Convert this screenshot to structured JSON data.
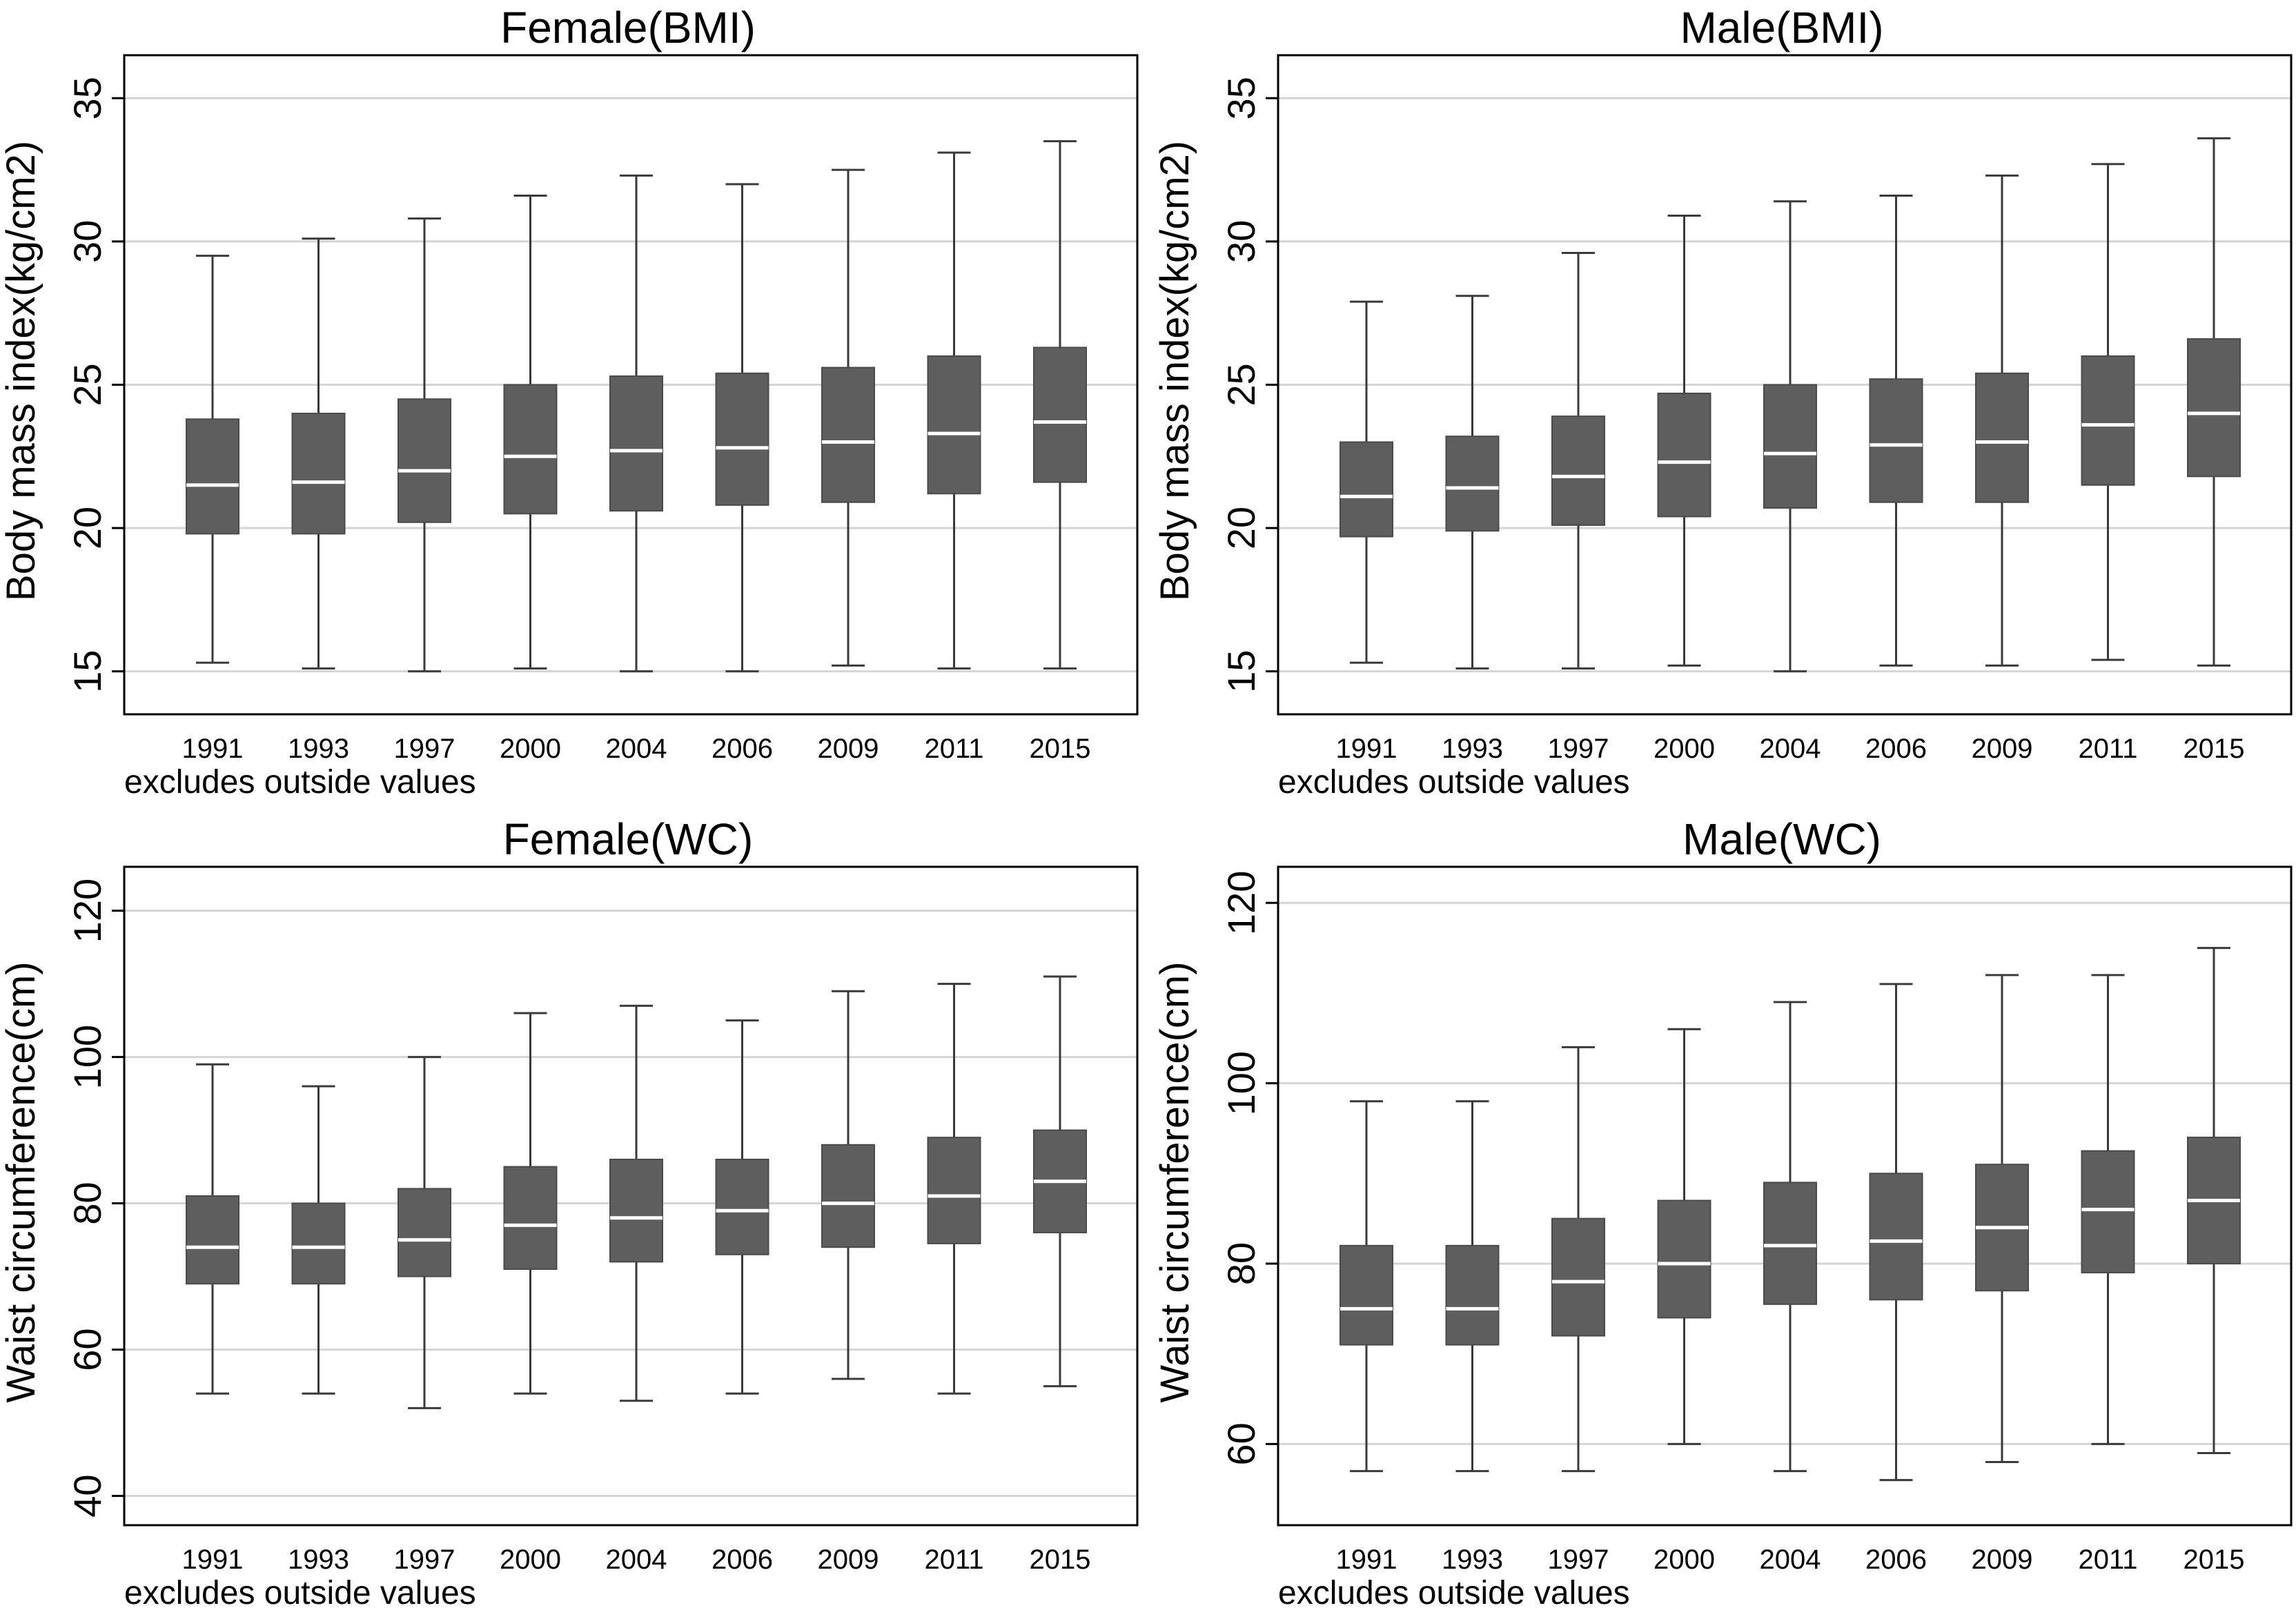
{
  "figure": {
    "note": "excludes outside values"
  },
  "chart_data": [
    {
      "type": "boxplot",
      "title": "Female(BMI)",
      "ylabel": "Body mass index(kg/cm2)",
      "xlabel": "",
      "ylim": [
        13.5,
        36.5
      ],
      "yticks": [
        15,
        20,
        25,
        30,
        35
      ],
      "grid": true,
      "box_color": "#5e5e5e",
      "median_color": "#ffffff",
      "categories": [
        "1991",
        "1993",
        "1997",
        "2000",
        "2004",
        "2006",
        "2009",
        "2011",
        "2015"
      ],
      "lower_whisker": [
        15.3,
        15.1,
        15.0,
        15.1,
        15.0,
        15.0,
        15.2,
        15.1,
        15.1
      ],
      "q1": [
        19.8,
        19.8,
        20.2,
        20.5,
        20.6,
        20.8,
        20.9,
        21.2,
        21.6
      ],
      "median": [
        21.5,
        21.6,
        22.0,
        22.5,
        22.7,
        22.8,
        23.0,
        23.3,
        23.7
      ],
      "q3": [
        23.8,
        24.0,
        24.5,
        25.0,
        25.3,
        25.4,
        25.6,
        26.0,
        26.3
      ],
      "upper_whisker": [
        29.5,
        30.1,
        30.8,
        31.6,
        32.3,
        32.0,
        32.5,
        33.1,
        33.5
      ]
    },
    {
      "type": "boxplot",
      "title": "Male(BMI)",
      "ylabel": "Body mass index(kg/cm2)",
      "xlabel": "",
      "ylim": [
        13.5,
        36.5
      ],
      "yticks": [
        15,
        20,
        25,
        30,
        35
      ],
      "grid": true,
      "box_color": "#5e5e5e",
      "median_color": "#ffffff",
      "categories": [
        "1991",
        "1993",
        "1997",
        "2000",
        "2004",
        "2006",
        "2009",
        "2011",
        "2015"
      ],
      "lower_whisker": [
        15.3,
        15.1,
        15.1,
        15.2,
        15.0,
        15.2,
        15.2,
        15.4,
        15.2
      ],
      "q1": [
        19.7,
        19.9,
        20.1,
        20.4,
        20.7,
        20.9,
        20.9,
        21.5,
        21.8
      ],
      "median": [
        21.1,
        21.4,
        21.8,
        22.3,
        22.6,
        22.9,
        23.0,
        23.6,
        24.0
      ],
      "q3": [
        23.0,
        23.2,
        23.9,
        24.7,
        25.0,
        25.2,
        25.4,
        26.0,
        26.6
      ],
      "upper_whisker": [
        27.9,
        28.1,
        29.6,
        30.9,
        31.4,
        31.6,
        32.3,
        32.7,
        33.6
      ]
    },
    {
      "type": "boxplot",
      "title": "Female(WC)",
      "ylabel": "Waist circumference(cm)",
      "xlabel": "",
      "ylim": [
        36,
        126
      ],
      "yticks": [
        40,
        60,
        80,
        100,
        120
      ],
      "grid": true,
      "box_color": "#5e5e5e",
      "median_color": "#ffffff",
      "categories": [
        "1991",
        "1993",
        "1997",
        "2000",
        "2004",
        "2006",
        "2009",
        "2011",
        "2015"
      ],
      "lower_whisker": [
        54,
        54,
        52,
        54,
        53,
        54,
        56,
        54,
        55
      ],
      "q1": [
        69,
        69,
        70,
        71,
        72,
        73,
        74,
        74.5,
        76
      ],
      "median": [
        74,
        74,
        75,
        77,
        78,
        79,
        80,
        81,
        83
      ],
      "q3": [
        81,
        80,
        82,
        85,
        86,
        86,
        88,
        89,
        90
      ],
      "upper_whisker": [
        99,
        96,
        100,
        106,
        107,
        105,
        109,
        110,
        111
      ]
    },
    {
      "type": "boxplot",
      "title": "Male(WC)",
      "ylabel": "Waist circumference(cm)",
      "xlabel": "",
      "ylim": [
        51,
        124
      ],
      "yticks": [
        60,
        80,
        100,
        120
      ],
      "grid": true,
      "box_color": "#5e5e5e",
      "median_color": "#ffffff",
      "categories": [
        "1991",
        "1993",
        "1997",
        "2000",
        "2004",
        "2006",
        "2009",
        "2011",
        "2015"
      ],
      "lower_whisker": [
        57,
        57,
        57,
        60,
        57,
        56,
        58,
        60,
        59
      ],
      "q1": [
        71,
        71,
        72,
        74,
        75.5,
        76,
        77,
        79,
        80
      ],
      "median": [
        75,
        75,
        78,
        80,
        82,
        82.5,
        84,
        86,
        87
      ],
      "q3": [
        82,
        82,
        85,
        87,
        89,
        90,
        91,
        92.5,
        94
      ],
      "upper_whisker": [
        98,
        98,
        104,
        106,
        109,
        111,
        112,
        112,
        115
      ]
    }
  ]
}
